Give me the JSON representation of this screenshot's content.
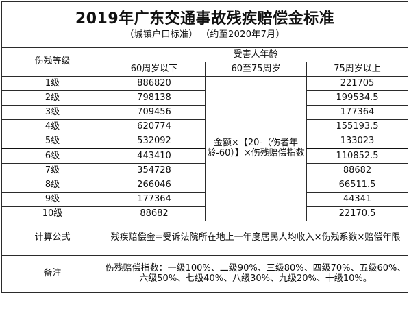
{
  "title": "2019年广东交通事故残疾赔偿金标准",
  "subtitle": "（城镇户口标准）  （约至2020年7月）",
  "header": {
    "grade_col": "伤残等级",
    "age_group": "受害人年龄",
    "age_under_60": "60周岁以下",
    "age_60_75": "60至75周岁",
    "age_over_75": "75周岁以上"
  },
  "rows": [
    {
      "grade": "1级",
      "under60": "886820",
      "over75": "221705"
    },
    {
      "grade": "2级",
      "under60": "798138",
      "over75": "199534.5"
    },
    {
      "grade": "3级",
      "under60": "709456",
      "over75": "177364"
    },
    {
      "grade": "4级",
      "under60": "620774",
      "over75": "155193.5"
    },
    {
      "grade": "5级",
      "under60": "532092",
      "over75": "133023"
    },
    {
      "grade": "6级",
      "under60": "443410",
      "over75": "110852.5"
    },
    {
      "grade": "7级",
      "under60": "354728",
      "over75": "88682"
    },
    {
      "grade": "8级",
      "under60": "266046",
      "over75": "66511.5"
    },
    {
      "grade": "9级",
      "under60": "177364",
      "over75": "44341"
    },
    {
      "grade": "10级",
      "under60": "88682",
      "over75": "22170.5"
    }
  ],
  "age_60_75_formula": "金额×【20-（伤者年龄-60）】×伤残赔偿指数",
  "formula": {
    "label": "计算公式",
    "text": "残疾赔偿金=受诉法院所在地上一年度居民人均收入×伤残系数×赔偿年限"
  },
  "notes": {
    "label": "备注",
    "text": "伤残赔偿指数：一级100%、二级90%、三级80%、四级70%、五级60%、六级50%、七级40%、八级30%、九级20%、十级10%。"
  }
}
